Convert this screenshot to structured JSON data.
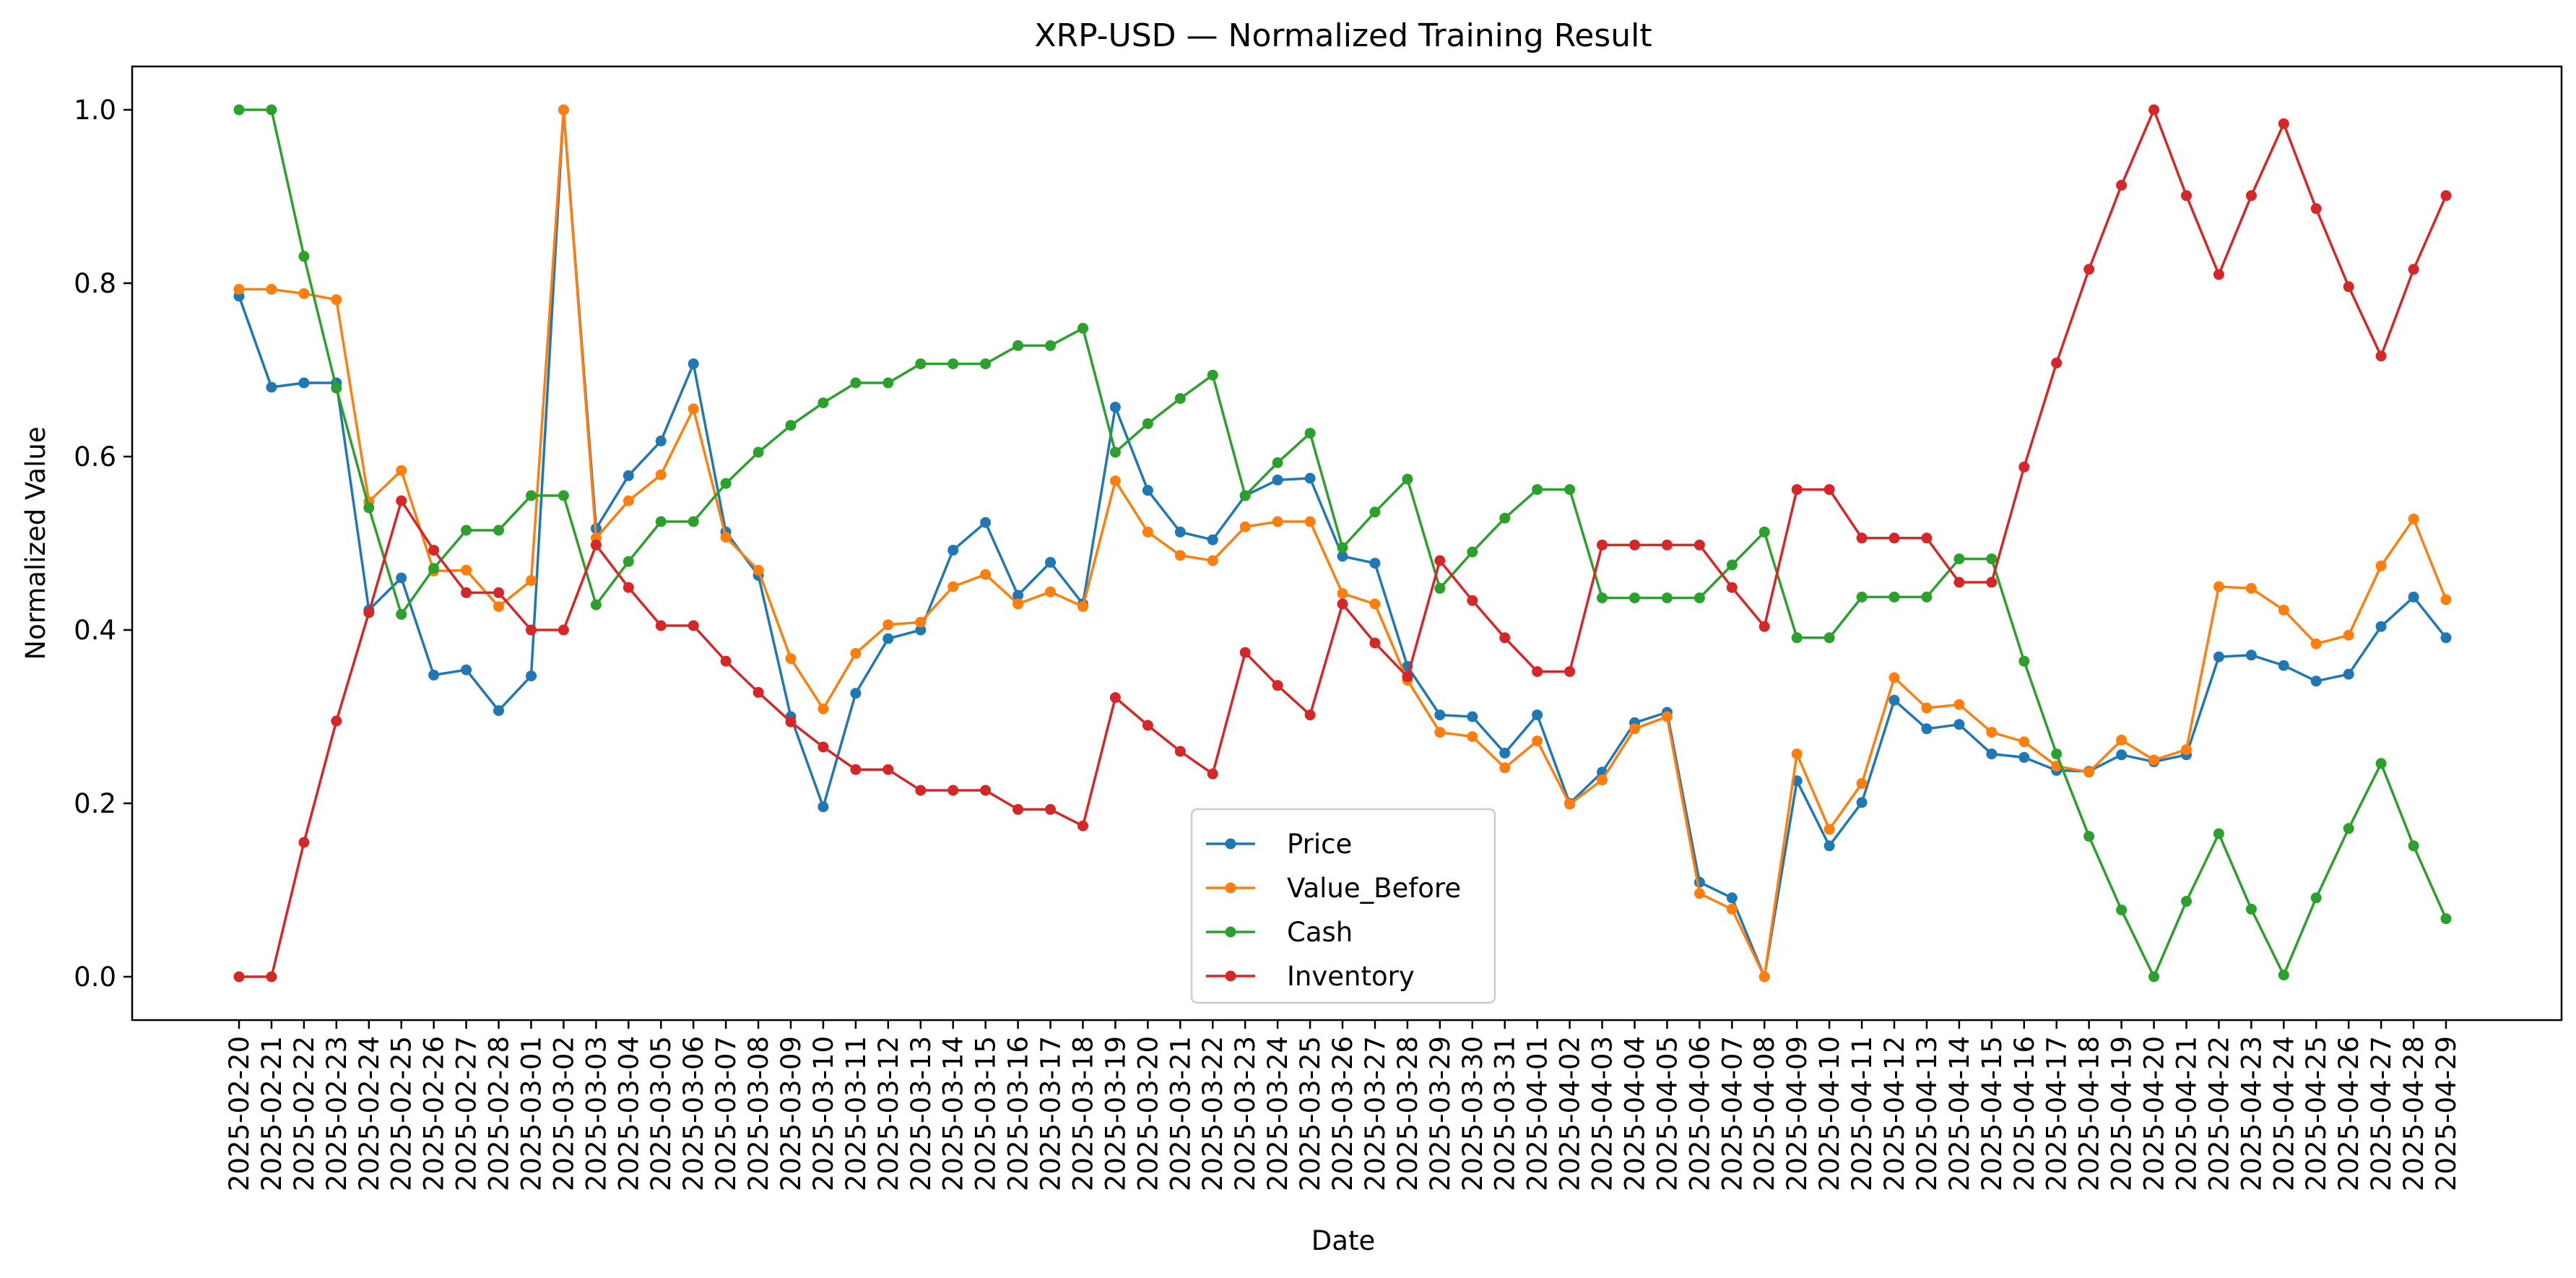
{
  "chart_data": {
    "type": "line",
    "title": "XRP-USD — Normalized Training Result",
    "xlabel": "Date",
    "ylabel": "Normalized Value",
    "ylim": [
      -0.05,
      1.05
    ],
    "yticks": [
      "0.0",
      "0.2",
      "0.4",
      "0.6",
      "0.8",
      "1.0"
    ],
    "ytick_values": [
      0,
      0.2,
      0.4,
      0.6,
      0.8,
      1.0
    ],
    "grid": false,
    "legend_position": "lower-center",
    "x": [
      "2025-02-20",
      "2025-02-21",
      "2025-02-22",
      "2025-02-23",
      "2025-02-24",
      "2025-02-25",
      "2025-02-26",
      "2025-02-27",
      "2025-02-28",
      "2025-03-01",
      "2025-03-02",
      "2025-03-03",
      "2025-03-04",
      "2025-03-05",
      "2025-03-06",
      "2025-03-07",
      "2025-03-08",
      "2025-03-09",
      "2025-03-10",
      "2025-03-11",
      "2025-03-12",
      "2025-03-13",
      "2025-03-14",
      "2025-03-15",
      "2025-03-16",
      "2025-03-17",
      "2025-03-18",
      "2025-03-19",
      "2025-03-20",
      "2025-03-21",
      "2025-03-22",
      "2025-03-23",
      "2025-03-24",
      "2025-03-25",
      "2025-03-26",
      "2025-03-27",
      "2025-03-28",
      "2025-03-29",
      "2025-03-30",
      "2025-03-31",
      "2025-04-01",
      "2025-04-02",
      "2025-04-03",
      "2025-04-04",
      "2025-04-05",
      "2025-04-06",
      "2025-04-07",
      "2025-04-08",
      "2025-04-09",
      "2025-04-10",
      "2025-04-11",
      "2025-04-12",
      "2025-04-13",
      "2025-04-14",
      "2025-04-15",
      "2025-04-16",
      "2025-04-17",
      "2025-04-18",
      "2025-04-19",
      "2025-04-20",
      "2025-04-21",
      "2025-04-22",
      "2025-04-23",
      "2025-04-24",
      "2025-04-25",
      "2025-04-26",
      "2025-04-27",
      "2025-04-28",
      "2025-04-29"
    ],
    "series": [
      {
        "name": "Price",
        "color": "#1f77b4",
        "values": [
          0.785,
          0.68,
          0.685,
          0.685,
          0.423,
          0.46,
          0.348,
          0.354,
          0.307,
          0.347,
          1.0,
          0.517,
          0.578,
          0.618,
          0.707,
          0.513,
          0.463,
          0.3,
          0.196,
          0.327,
          0.39,
          0.4,
          0.492,
          0.524,
          0.44,
          0.478,
          0.43,
          0.657,
          0.561,
          0.513,
          0.504,
          0.555,
          0.573,
          0.575,
          0.485,
          0.477,
          0.358,
          0.302,
          0.3,
          0.258,
          0.302,
          0.2,
          0.236,
          0.293,
          0.305,
          0.109,
          0.091,
          0.0,
          0.226,
          0.151,
          0.201,
          0.319,
          0.286,
          0.291,
          0.257,
          0.253,
          0.238,
          0.237,
          0.256,
          0.248,
          0.256,
          0.369,
          0.371,
          0.359,
          0.341,
          0.349,
          0.404,
          0.438,
          0.391
        ]
      },
      {
        "name": "Value_Before",
        "color": "#ff7f0e",
        "values": [
          0.793,
          0.793,
          0.788,
          0.781,
          0.548,
          0.584,
          0.468,
          0.469,
          0.427,
          0.457,
          1.0,
          0.506,
          0.549,
          0.579,
          0.655,
          0.507,
          0.469,
          0.367,
          0.309,
          0.373,
          0.406,
          0.409,
          0.45,
          0.464,
          0.43,
          0.444,
          0.427,
          0.572,
          0.513,
          0.486,
          0.48,
          0.519,
          0.525,
          0.525,
          0.442,
          0.43,
          0.342,
          0.282,
          0.277,
          0.241,
          0.272,
          0.199,
          0.227,
          0.286,
          0.3,
          0.096,
          0.078,
          0.0,
          0.257,
          0.17,
          0.223,
          0.345,
          0.31,
          0.314,
          0.282,
          0.271,
          0.243,
          0.236,
          0.273,
          0.25,
          0.262,
          0.45,
          0.448,
          0.423,
          0.384,
          0.394,
          0.474,
          0.528,
          0.435
        ]
      },
      {
        "name": "Cash",
        "color": "#2ca02c",
        "values": [
          1.0,
          1.0,
          0.831,
          0.679,
          0.541,
          0.418,
          0.471,
          0.515,
          0.515,
          0.555,
          0.555,
          0.429,
          0.479,
          0.525,
          0.525,
          0.569,
          0.605,
          0.636,
          0.662,
          0.685,
          0.685,
          0.707,
          0.707,
          0.707,
          0.728,
          0.728,
          0.748,
          0.605,
          0.638,
          0.667,
          0.694,
          0.555,
          0.593,
          0.627,
          0.495,
          0.536,
          0.574,
          0.448,
          0.49,
          0.529,
          0.562,
          0.562,
          0.437,
          0.437,
          0.437,
          0.437,
          0.475,
          0.513,
          0.391,
          0.391,
          0.438,
          0.438,
          0.438,
          0.482,
          0.482,
          0.364,
          0.257,
          0.162,
          0.077,
          0.0,
          0.087,
          0.165,
          0.078,
          0.002,
          0.091,
          0.171,
          0.246,
          0.151,
          0.067
        ]
      },
      {
        "name": "Inventory",
        "color": "#d62728",
        "values": [
          0.0,
          0.0,
          0.155,
          0.295,
          0.42,
          0.549,
          0.492,
          0.443,
          0.443,
          0.4,
          0.4,
          0.498,
          0.449,
          0.405,
          0.405,
          0.364,
          0.328,
          0.294,
          0.265,
          0.239,
          0.239,
          0.215,
          0.215,
          0.215,
          0.193,
          0.193,
          0.174,
          0.322,
          0.29,
          0.26,
          0.234,
          0.374,
          0.336,
          0.302,
          0.43,
          0.385,
          0.346,
          0.48,
          0.434,
          0.391,
          0.352,
          0.352,
          0.498,
          0.498,
          0.498,
          0.498,
          0.449,
          0.404,
          0.562,
          0.562,
          0.506,
          0.506,
          0.506,
          0.455,
          0.455,
          0.588,
          0.708,
          0.816,
          0.913,
          1.0,
          0.901,
          0.81,
          0.901,
          0.984,
          0.886,
          0.796,
          0.716,
          0.816,
          0.901
        ]
      }
    ]
  }
}
